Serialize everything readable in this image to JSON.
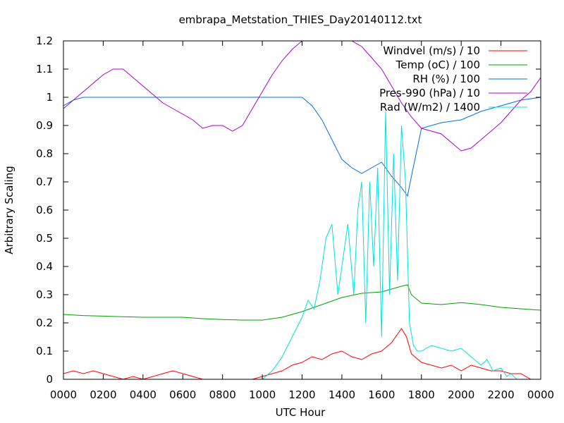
{
  "chart_data": {
    "type": "line",
    "title": "embrapa_Metstation_THIES_Day20140112.txt",
    "xlabel": "UTC Hour",
    "ylabel": "Arbitrary Scaling",
    "xlim": [
      0,
      24
    ],
    "ylim": [
      0,
      1.2
    ],
    "x_ticks": [
      {
        "v": 0,
        "label": "0000"
      },
      {
        "v": 2,
        "label": "0200"
      },
      {
        "v": 4,
        "label": "0400"
      },
      {
        "v": 6,
        "label": "0600"
      },
      {
        "v": 8,
        "label": "0800"
      },
      {
        "v": 10,
        "label": "1000"
      },
      {
        "v": 12,
        "label": "1200"
      },
      {
        "v": 14,
        "label": "1400"
      },
      {
        "v": 16,
        "label": "1600"
      },
      {
        "v": 18,
        "label": "1800"
      },
      {
        "v": 20,
        "label": "2000"
      },
      {
        "v": 22,
        "label": "2200"
      },
      {
        "v": 24,
        "label": "0000"
      }
    ],
    "y_ticks": [
      {
        "v": 0,
        "label": "0"
      },
      {
        "v": 0.1,
        "label": "0.1"
      },
      {
        "v": 0.2,
        "label": "0.2"
      },
      {
        "v": 0.3,
        "label": "0.3"
      },
      {
        "v": 0.4,
        "label": "0.4"
      },
      {
        "v": 0.5,
        "label": "0.5"
      },
      {
        "v": 0.6,
        "label": "0.6"
      },
      {
        "v": 0.7,
        "label": "0.7"
      },
      {
        "v": 0.8,
        "label": "0.8"
      },
      {
        "v": 0.9,
        "label": "0.9"
      },
      {
        "v": 1.0,
        "label": "1"
      },
      {
        "v": 1.1,
        "label": "1.1"
      },
      {
        "v": 1.2,
        "label": "1.2"
      }
    ],
    "grid": false,
    "legend_position": "top-right",
    "series": [
      {
        "name": "Windvel (m/s) / 10",
        "color": "#ff0000",
        "x": [
          0,
          0.5,
          1,
          1.5,
          2,
          2.5,
          3,
          3.5,
          4,
          4.5,
          5,
          5.5,
          6,
          6.5,
          7,
          7.5,
          8,
          8.5,
          9,
          9.5,
          10,
          10.5,
          11,
          11.5,
          12,
          12.5,
          13,
          13.5,
          14,
          14.5,
          15,
          15.5,
          16,
          16.5,
          17,
          17.25,
          17.5,
          18,
          18.5,
          19,
          19.5,
          20,
          20.5,
          21,
          21.5,
          22,
          22.5,
          23,
          23.5,
          24
        ],
        "y": [
          0.02,
          0.03,
          0.02,
          0.03,
          0.02,
          0.01,
          0,
          0.01,
          0,
          0.01,
          0.02,
          0.03,
          0.02,
          0.01,
          0,
          0,
          0,
          0,
          0,
          0,
          0.01,
          0.02,
          0.03,
          0.05,
          0.06,
          0.08,
          0.07,
          0.09,
          0.1,
          0.08,
          0.07,
          0.09,
          0.1,
          0.13,
          0.18,
          0.15,
          0.09,
          0.06,
          0.05,
          0.04,
          0.05,
          0.03,
          0.05,
          0.04,
          0.03,
          0.03,
          0.02,
          0.02,
          0,
          0
        ]
      },
      {
        "name": "Temp (oC) / 100",
        "color": "#00a000",
        "x": [
          0,
          1,
          2,
          3,
          4,
          5,
          6,
          7,
          8,
          9,
          10,
          11,
          12,
          13,
          14,
          15,
          16,
          17,
          17.3,
          17.5,
          18,
          19,
          20,
          21,
          22,
          23,
          24
        ],
        "y": [
          0.23,
          0.226,
          0.224,
          0.222,
          0.22,
          0.22,
          0.22,
          0.215,
          0.212,
          0.21,
          0.21,
          0.22,
          0.24,
          0.265,
          0.29,
          0.305,
          0.31,
          0.33,
          0.335,
          0.3,
          0.27,
          0.265,
          0.272,
          0.265,
          0.255,
          0.25,
          0.245
        ]
      },
      {
        "name": "RH (%) / 100",
        "color": "#0070e0",
        "x": [
          0,
          0.5,
          1,
          2,
          4,
          6,
          8,
          10,
          12,
          12.5,
          13,
          13.5,
          14,
          14.5,
          15,
          15.5,
          16,
          16.5,
          17,
          17.3,
          17.5,
          18,
          19,
          20,
          21,
          22,
          23,
          24
        ],
        "y": [
          0.97,
          0.99,
          1.0,
          1.0,
          1.0,
          1.0,
          1.0,
          1.0,
          1.0,
          0.97,
          0.92,
          0.85,
          0.78,
          0.75,
          0.73,
          0.75,
          0.77,
          0.72,
          0.68,
          0.65,
          0.72,
          0.89,
          0.91,
          0.92,
          0.95,
          0.97,
          0.99,
          1.0
        ]
      },
      {
        "name": "Pres-990 (hPa) / 10",
        "color": "#b000d0",
        "x": [
          0,
          0.5,
          1,
          1.5,
          2,
          2.5,
          3,
          3.5,
          4,
          4.5,
          5,
          5.5,
          6,
          6.5,
          7,
          7.5,
          8,
          8.5,
          9,
          9.5,
          10,
          10.5,
          11,
          11.5,
          12,
          12.5,
          13,
          13.5,
          14,
          14.5,
          15,
          15.5,
          16,
          16.5,
          17,
          17.5,
          18,
          18.5,
          19,
          19.5,
          20,
          20.5,
          21,
          21.5,
          22,
          22.5,
          23,
          23.5,
          24
        ],
        "y": [
          0.96,
          0.99,
          1.02,
          1.05,
          1.08,
          1.1,
          1.1,
          1.07,
          1.04,
          1.01,
          0.98,
          0.96,
          0.94,
          0.92,
          0.89,
          0.9,
          0.9,
          0.88,
          0.9,
          0.96,
          1.02,
          1.08,
          1.13,
          1.17,
          1.2,
          1.2,
          1.2,
          1.2,
          1.2,
          1.2,
          1.18,
          1.14,
          1.1,
          1.04,
          0.98,
          0.93,
          0.89,
          0.88,
          0.87,
          0.84,
          0.81,
          0.82,
          0.85,
          0.88,
          0.91,
          0.95,
          0.99,
          1.02,
          1.07
        ]
      },
      {
        "name": "Rad (W/m2) / 1400",
        "color": "#00e0e0",
        "x": [
          0,
          9.7,
          10,
          10.5,
          11,
          11.5,
          12,
          12.3,
          12.6,
          12.9,
          13.2,
          13.5,
          13.8,
          14,
          14.3,
          14.6,
          14.8,
          15,
          15.2,
          15.4,
          15.6,
          15.8,
          16,
          16.2,
          16.4,
          16.6,
          16.8,
          17,
          17.2,
          17.4,
          17.6,
          17.8,
          18,
          18.5,
          19,
          19.5,
          20,
          20.5,
          21,
          21.3,
          21.6,
          22,
          22.3,
          22.5,
          22.8,
          23,
          23.5,
          24
        ],
        "y": [
          0,
          0,
          0,
          0.03,
          0.08,
          0.15,
          0.22,
          0.28,
          0.25,
          0.35,
          0.5,
          0.55,
          0.3,
          0.4,
          0.55,
          0.3,
          0.6,
          0.7,
          0.2,
          0.7,
          0.4,
          0.75,
          0.15,
          0.95,
          0.3,
          0.8,
          0.35,
          0.9,
          0.7,
          0.2,
          0.12,
          0.1,
          0.1,
          0.12,
          0.11,
          0.1,
          0.11,
          0.08,
          0.05,
          0.07,
          0.03,
          0.04,
          0.01,
          0.02,
          0,
          0,
          0,
          0
        ]
      }
    ]
  }
}
